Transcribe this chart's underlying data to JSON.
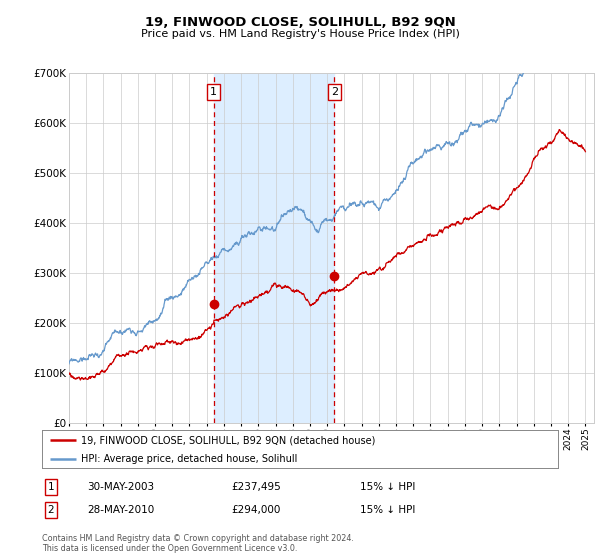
{
  "title": "19, FINWOOD CLOSE, SOLIHULL, B92 9QN",
  "subtitle": "Price paid vs. HM Land Registry's House Price Index (HPI)",
  "ylim": [
    0,
    700000
  ],
  "yticks": [
    0,
    100000,
    200000,
    300000,
    400000,
    500000,
    600000,
    700000
  ],
  "ytick_labels": [
    "£0",
    "£100K",
    "£200K",
    "£300K",
    "£400K",
    "£500K",
    "£600K",
    "£700K"
  ],
  "x_start_year": 1995,
  "x_end_year": 2025,
  "transaction1": {
    "date": "30-MAY-2003",
    "year": 2003.41,
    "price": 237495,
    "label": "1"
  },
  "transaction2": {
    "date": "28-MAY-2010",
    "year": 2010.41,
    "price": 294000,
    "label": "2"
  },
  "shaded_region": [
    2003.41,
    2010.41
  ],
  "hpi_color": "#6699cc",
  "price_color": "#cc0000",
  "background_color": "#ffffff",
  "grid_color": "#cccccc",
  "shaded_color": "#ddeeff",
  "legend_label_price": "19, FINWOOD CLOSE, SOLIHULL, B92 9QN (detached house)",
  "legend_label_hpi": "HPI: Average price, detached house, Solihull",
  "footer1": "Contains HM Land Registry data © Crown copyright and database right 2024.",
  "footer2": "This data is licensed under the Open Government Licence v3.0.",
  "table_rows": [
    {
      "num": "1",
      "date": "30-MAY-2003",
      "price": "£237,495",
      "hpi": "15% ↓ HPI"
    },
    {
      "num": "2",
      "date": "28-MAY-2010",
      "price": "£294,000",
      "hpi": "15% ↓ HPI"
    }
  ]
}
